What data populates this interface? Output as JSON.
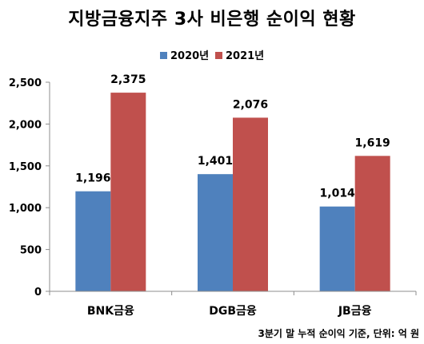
{
  "title": "지방금융지주 3사 비은행 순이익 현황",
  "note": "3분기 말 누적 순이익 기준, 단위: 억 원",
  "colors": {
    "s2020": "#4F81BD",
    "s2021": "#C0504D",
    "axis": "#8c8c8c"
  },
  "chart_data": {
    "type": "bar",
    "title": "지방금융지주 3사 비은행 순이익 현황",
    "categories": [
      "BNK금융",
      "DGB금융",
      "JB금융"
    ],
    "series": [
      {
        "name": "2020년",
        "values": [
          1196,
          1401,
          1014
        ]
      },
      {
        "name": "2021년",
        "values": [
          2375,
          2076,
          1619
        ]
      }
    ],
    "data_labels": [
      [
        "1,196",
        "1,401",
        "1,014"
      ],
      [
        "2,375",
        "2,076",
        "1,619"
      ]
    ],
    "yticks": [
      "0",
      "500",
      "1,000",
      "1,500",
      "2,000",
      "2,500"
    ],
    "ytick_values": [
      0,
      500,
      1000,
      1500,
      2000,
      2500
    ],
    "ylim": [
      0,
      2500
    ],
    "grid": false,
    "legend_position": "top",
    "xlabel": "",
    "ylabel": ""
  }
}
